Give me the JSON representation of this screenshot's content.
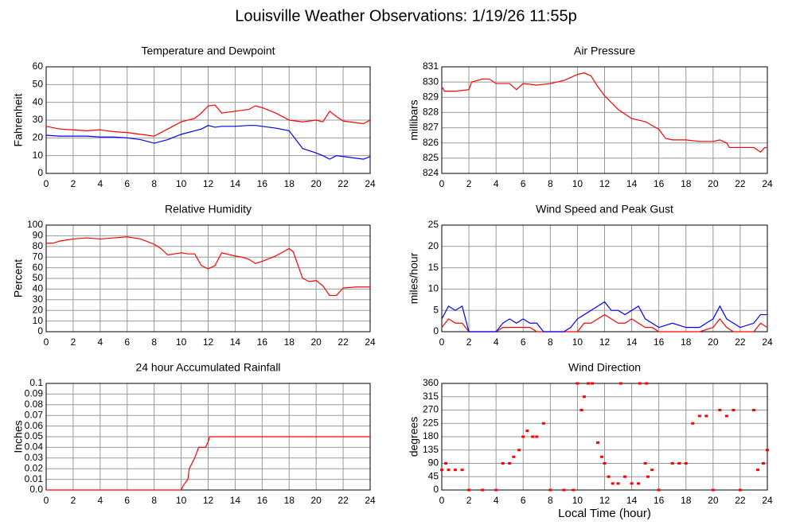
{
  "title": "Louisville Weather Observations: 1/19/26 11:55p",
  "chart_data": [
    {
      "type": "line",
      "title": "Temperature and Dewpoint",
      "ylabel": "Fahrenheit",
      "x": [
        0,
        1,
        2,
        3,
        4,
        5,
        6,
        7,
        8,
        9,
        10,
        11,
        11.5,
        12,
        12.5,
        13,
        14,
        15,
        15.5,
        16,
        17,
        18,
        19,
        20,
        20.5,
        21,
        21.5,
        22,
        23,
        23.5,
        24
      ],
      "series": [
        {
          "color": "#ff0000",
          "values": [
            26.5,
            25,
            24.5,
            24,
            24.5,
            23.5,
            23,
            22,
            21,
            25,
            29,
            31,
            34,
            38,
            38.5,
            34,
            35,
            36,
            38,
            37,
            34,
            30,
            29,
            30,
            29,
            35,
            32,
            29.5,
            28.5,
            28,
            30
          ]
        },
        {
          "color": "#0000ff",
          "values": [
            21.5,
            21,
            21,
            21,
            20.5,
            20.5,
            20,
            19,
            17,
            19,
            22,
            24,
            25,
            27,
            26,
            26.5,
            26.5,
            27,
            27,
            26.5,
            25.5,
            24,
            14,
            11.5,
            10,
            8,
            10,
            9.5,
            8.5,
            8,
            9.5
          ]
        }
      ],
      "xlim": [
        0,
        24
      ],
      "xticks": [
        0,
        2,
        4,
        6,
        8,
        10,
        12,
        14,
        16,
        18,
        20,
        22,
        24
      ],
      "ylim": [
        0,
        60
      ],
      "yticks": [
        0,
        10,
        20,
        30,
        40,
        50,
        60
      ],
      "grid": true
    },
    {
      "type": "line",
      "title": "Air Pressure",
      "ylabel": "millibars",
      "x": [
        0,
        0.2,
        1,
        2,
        2.2,
        3,
        3.5,
        4,
        5,
        5.5,
        6,
        7,
        8,
        9,
        9.5,
        10,
        10.5,
        11,
        11.5,
        12,
        13,
        14,
        15,
        16,
        16.5,
        17,
        18,
        19,
        20,
        20.5,
        21,
        21.2,
        22,
        23,
        23.5,
        23.8,
        24
      ],
      "series": [
        {
          "color": "#ff0000",
          "values": [
            829.7,
            829.4,
            829.4,
            829.5,
            830,
            830.2,
            830.2,
            829.9,
            829.9,
            829.5,
            829.9,
            829.8,
            829.9,
            830.1,
            830.3,
            830.5,
            830.6,
            830.4,
            829.7,
            829.1,
            828.2,
            827.6,
            827.4,
            826.9,
            826.3,
            826.2,
            826.2,
            826.1,
            826.1,
            826.2,
            826,
            825.7,
            825.7,
            825.7,
            825.4,
            825.7,
            825.7
          ]
        }
      ],
      "xlim": [
        0,
        24
      ],
      "xticks": [
        0,
        2,
        4,
        6,
        8,
        10,
        12,
        14,
        16,
        18,
        20,
        22,
        24
      ],
      "ylim": [
        824,
        831
      ],
      "yticks": [
        824,
        825,
        826,
        827,
        828,
        829,
        830,
        831
      ],
      "grid": true
    },
    {
      "type": "line",
      "title": "Relative Humidity",
      "ylabel": "Percent",
      "x": [
        0,
        0.5,
        1,
        2,
        3,
        4,
        5,
        6,
        7,
        8,
        8.5,
        9,
        9.5,
        10,
        10.5,
        11,
        11.5,
        12,
        12.5,
        13,
        14,
        14.5,
        15,
        15.5,
        16,
        17,
        18,
        18.3,
        19,
        19.5,
        20,
        20.5,
        21,
        21.5,
        22,
        23,
        24
      ],
      "series": [
        {
          "color": "#ff0000",
          "values": [
            83,
            83,
            85,
            87,
            88,
            87,
            88,
            89,
            87,
            82,
            78,
            72,
            73,
            74,
            73,
            73,
            62,
            59,
            62,
            74,
            71,
            70,
            68,
            64,
            66,
            71,
            78,
            75,
            50,
            47,
            48,
            43,
            34,
            34,
            41,
            42,
            42
          ]
        }
      ],
      "xlim": [
        0,
        24
      ],
      "xticks": [
        0,
        2,
        4,
        6,
        8,
        10,
        12,
        14,
        16,
        18,
        20,
        22,
        24
      ],
      "ylim": [
        0,
        100
      ],
      "yticks": [
        0,
        10,
        20,
        30,
        40,
        50,
        60,
        70,
        80,
        90,
        100
      ],
      "grid": true
    },
    {
      "type": "line",
      "title": "Wind Speed and Peak Gust",
      "ylabel": "miles/hour",
      "x": [
        0,
        0.5,
        1,
        1.5,
        2,
        3,
        4,
        4.5,
        5,
        5.5,
        6,
        6.5,
        7,
        7.5,
        8,
        9,
        9.5,
        10,
        10.5,
        11,
        11.5,
        12,
        12.5,
        13,
        13.5,
        14,
        14.5,
        15,
        15.5,
        16,
        17,
        18,
        19,
        20,
        20.5,
        21,
        21.5,
        22,
        23,
        23.5,
        24
      ],
      "series": [
        {
          "color": "#ff0000",
          "values": [
            1,
            3,
            2,
            2,
            0,
            0,
            0,
            1,
            1,
            1,
            1,
            1,
            0,
            0,
            0,
            0,
            0,
            0,
            2,
            2,
            3,
            4,
            3,
            2,
            2,
            3,
            2,
            1,
            1,
            0,
            0,
            0,
            0,
            1,
            3,
            1,
            0,
            0,
            0,
            2,
            1
          ]
        },
        {
          "color": "#0000ff",
          "values": [
            3,
            6,
            5,
            6,
            0,
            0,
            0,
            2,
            3,
            2,
            3,
            2,
            2,
            0,
            0,
            0,
            1,
            3,
            4,
            5,
            6,
            7,
            5,
            5,
            4,
            5,
            6,
            3,
            2,
            1,
            2,
            1,
            1,
            3,
            6,
            3,
            2,
            1,
            2,
            4,
            4
          ]
        }
      ],
      "xlim": [
        0,
        24
      ],
      "xticks": [
        0,
        2,
        4,
        6,
        8,
        10,
        12,
        14,
        16,
        18,
        20,
        22,
        24
      ],
      "ylim": [
        0,
        25
      ],
      "yticks": [
        0,
        5,
        10,
        15,
        20,
        25
      ],
      "grid": true
    },
    {
      "type": "line",
      "title": "24 hour Accumulated Rainfall",
      "ylabel": "Inches",
      "x": [
        0,
        10,
        10.2,
        10.5,
        10.6,
        11,
        11.3,
        11.8,
        12,
        12.1,
        24
      ],
      "series": [
        {
          "color": "#ff0000",
          "values": [
            0,
            0,
            0.005,
            0.01,
            0.02,
            0.03,
            0.04,
            0.04,
            0.045,
            0.05,
            0.05
          ]
        }
      ],
      "xlim": [
        0,
        24
      ],
      "xticks": [
        0,
        2,
        4,
        6,
        8,
        10,
        12,
        14,
        16,
        18,
        20,
        22,
        24
      ],
      "ylim": [
        0,
        0.1
      ],
      "yticks": [
        {
          "value": 0,
          "label": "0.0"
        },
        0.01,
        0.02,
        0.03,
        0.04,
        0.05,
        0.06,
        0.07,
        0.08,
        0.09,
        0.1
      ],
      "grid": true
    },
    {
      "type": "scatter",
      "title": "Wind Direction",
      "ylabel": "degrees",
      "xlabel": "Local Time (hour)",
      "x": [
        0,
        0.3,
        0.5,
        1,
        1.5,
        2,
        3,
        4,
        4.5,
        5,
        5.3,
        5.7,
        6,
        6.3,
        6.7,
        7,
        7.5,
        8,
        9,
        9.7,
        10,
        10.3,
        10.5,
        10.8,
        11.1,
        11.5,
        11.8,
        12,
        12.3,
        12.6,
        13,
        13.2,
        13.5,
        14,
        14.5,
        14.6,
        15,
        15.1,
        15.2,
        15.5,
        16,
        17,
        17.5,
        18,
        18.5,
        19,
        19.5,
        20,
        20.5,
        21,
        21.5,
        22,
        23,
        23.3,
        23.7,
        24
      ],
      "series": [
        {
          "color": "#ff0000",
          "values": [
            68,
            90,
            68,
            68,
            68,
            0,
            0,
            0,
            90,
            90,
            112,
            135,
            180,
            200,
            180,
            180,
            225,
            0,
            0,
            0,
            360,
            270,
            315,
            360,
            360,
            160,
            112,
            90,
            45,
            22,
            22,
            360,
            45,
            22,
            22,
            360,
            90,
            360,
            45,
            68,
            0,
            90,
            90,
            90,
            225,
            250,
            250,
            0,
            270,
            250,
            270,
            0,
            270,
            68,
            90,
            135
          ]
        }
      ],
      "xlim": [
        0,
        24
      ],
      "xticks": [
        0,
        2,
        4,
        6,
        8,
        10,
        12,
        14,
        16,
        18,
        20,
        22,
        24
      ],
      "ylim": [
        0,
        360
      ],
      "yticks": [
        0,
        45,
        90,
        135,
        180,
        225,
        270,
        315,
        360
      ],
      "grid": true
    }
  ]
}
